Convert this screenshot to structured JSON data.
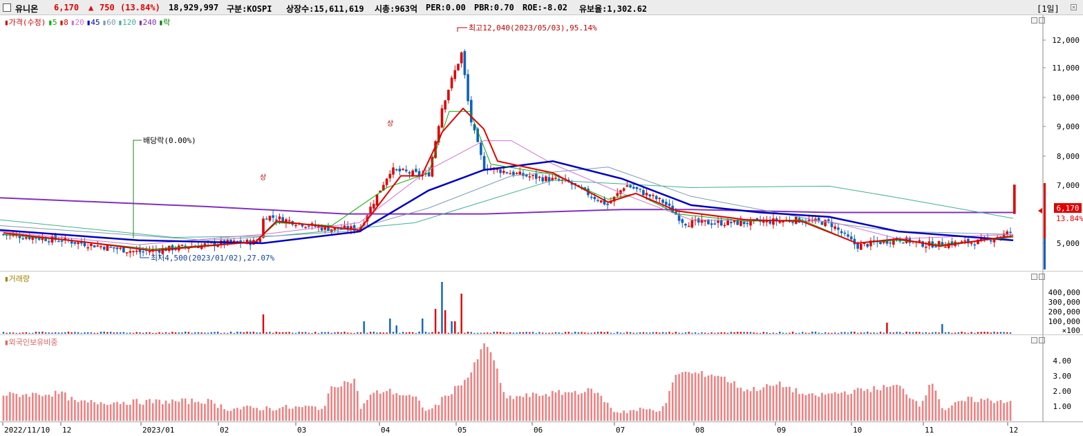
{
  "header": {
    "name": "유니온",
    "price": "6,170",
    "change_arrow": "▲",
    "change": "750",
    "change_pct": "(13.84%)",
    "volume": "18,929,997",
    "market": "구분:KOSPI",
    "shares": "상장수:15,611,619",
    "mcap": "시총:963억",
    "per": "PER:0.00",
    "pbr": "PBR:0.70",
    "roe": "ROE:-8.02",
    "reserve": "유보율:1,302.62",
    "period": "[1일]"
  },
  "price_legend": [
    {
      "label": "가격(수정)",
      "color": "#d00000"
    },
    {
      "label": "5",
      "color": "#00b000"
    },
    {
      "label": "8",
      "color": "#e00000"
    },
    {
      "label": "20",
      "color": "#d070d0"
    },
    {
      "label": "45",
      "color": "#0000c0"
    },
    {
      "label": "60",
      "color": "#7a9ab0"
    },
    {
      "label": "120",
      "color": "#40b090"
    },
    {
      "label": "240",
      "color": "#8030c0"
    },
    {
      "label": "락",
      "color": "#008000"
    }
  ],
  "annotations": {
    "high": "최고12,040(2023/05/03),95.14%",
    "low": "최저4,500(2023/01/02),27.07%",
    "dividend": "배당락(0.00%)",
    "limit_up_1": "상",
    "limit_up_2": "상"
  },
  "price_axis": [
    "12,000",
    "11,000",
    "10,000",
    "9,000",
    "8,000",
    "7,000",
    "5,000"
  ],
  "current_price_tag": {
    "price": "6,170",
    "pct": "13.84%"
  },
  "volume_title": "거래량",
  "volume_axis": [
    "400,000",
    "300,000",
    "200,000",
    "100,000",
    "×100"
  ],
  "foreign_title": "외국인보유비중",
  "foreign_axis": [
    "4.00",
    "3.00",
    "2.00",
    "1.00"
  ],
  "date_axis": [
    "2022/11/10",
    "12",
    "2023/01",
    "02",
    "03",
    "04",
    "05",
    "06",
    "07",
    "08",
    "09",
    "10",
    "11",
    "12"
  ],
  "colors": {
    "up": "#e00000",
    "down": "#1060c0",
    "ma45": "#0000c0",
    "ma240": "#8030c0",
    "ma8": "#e00000",
    "ma5": "#00b000"
  }
}
